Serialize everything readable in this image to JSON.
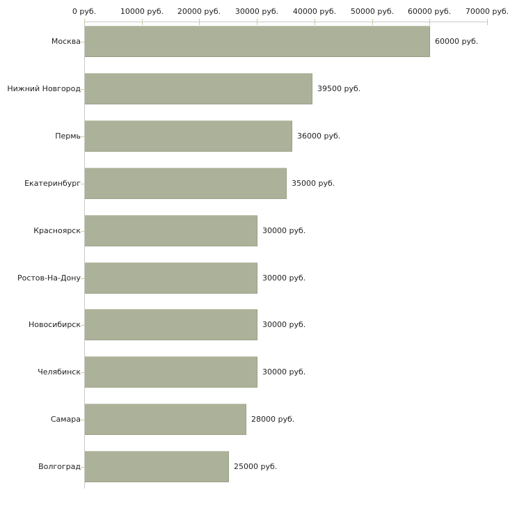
{
  "chart_data": {
    "type": "bar",
    "orientation": "horizontal",
    "title": "",
    "unit": "руб.",
    "categories": [
      "Москва",
      "Нижний Новгород",
      "Пермь",
      "Екатеринбург",
      "Красноярск",
      "Ростов-На-Дону",
      "Новосибирск",
      "Челябинск",
      "Самара",
      "Волгоград"
    ],
    "values": [
      60000,
      39500,
      36000,
      35000,
      30000,
      30000,
      30000,
      30000,
      28000,
      25000
    ],
    "value_labels": [
      "60000 руб.",
      "39500 руб.",
      "36000 руб.",
      "35000 руб.",
      "30000 руб.",
      "30000 руб.",
      "30000 руб.",
      "30000 руб.",
      "28000 руб.",
      "25000 руб."
    ],
    "x_axis": {
      "min": 0,
      "max": 70000,
      "tick_interval": 10000,
      "tick_labels": [
        "0 руб.",
        "10000 руб.",
        "20000 руб.",
        "30000 руб.",
        "40000 руб.",
        "50000 руб.",
        "60000 руб.",
        "70000 руб."
      ]
    },
    "grid": "off",
    "legend": "none"
  },
  "colors": {
    "bar_fill": "#acb299",
    "bar_highlight": "#c5cab6",
    "bar_shadow": "#99a087",
    "axis_line": "#c8c8c8",
    "tick_mark": "#c9c9a1",
    "text": "#1f1f1f",
    "background": "#ffffff"
  }
}
